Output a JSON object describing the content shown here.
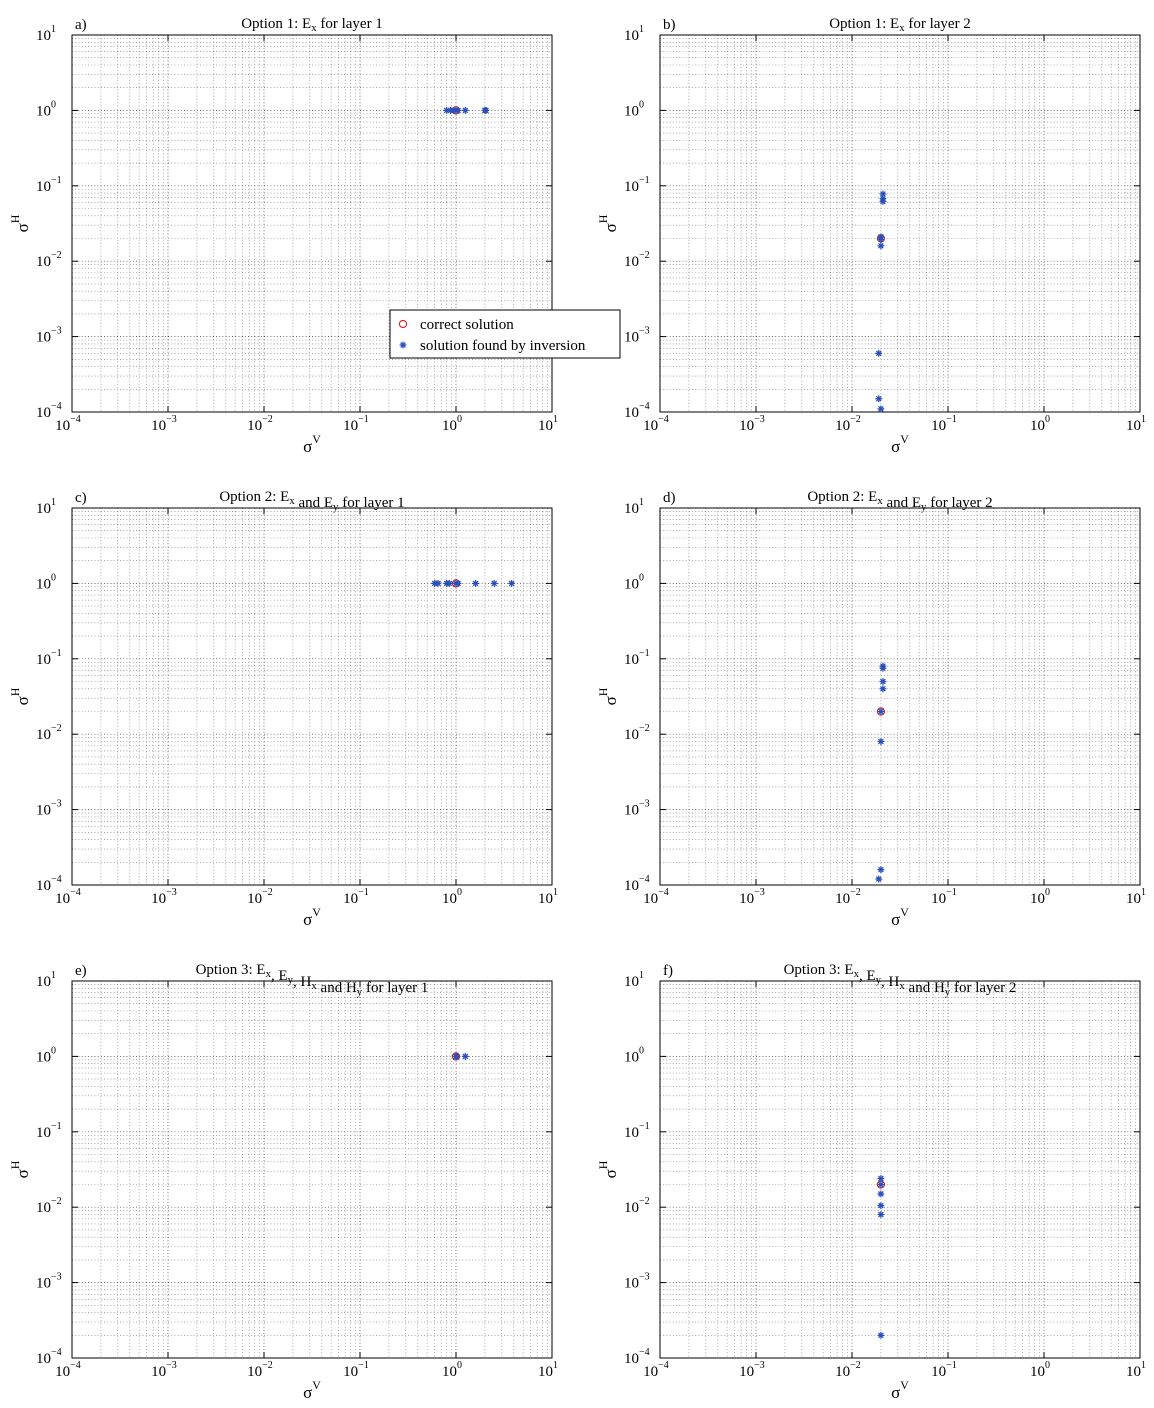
{
  "chart_data": [
    {
      "type": "scatter",
      "panel_label": "a)",
      "title": "Option 1: E_x for layer 1",
      "xlabel": "σV",
      "ylabel": "σH",
      "xscale": "log",
      "yscale": "log",
      "xlim": [
        0.0001,
        10
      ],
      "ylim": [
        0.0001,
        10
      ],
      "grid": true,
      "legend": {
        "placement": "lower-right",
        "entries": [
          "correct solution",
          "solution found by inversion"
        ]
      },
      "series": [
        {
          "name": "correct solution",
          "marker": "circle",
          "color": "#d62020",
          "points": [
            [
              1,
              1
            ]
          ]
        },
        {
          "name": "solution found by inversion",
          "marker": "asterisk",
          "color": "#2b4fb8",
          "points": [
            [
              0.8,
              1
            ],
            [
              0.88,
              1
            ],
            [
              0.95,
              1
            ],
            [
              1.0,
              1
            ],
            [
              1.05,
              1
            ],
            [
              1.25,
              1
            ],
            [
              2.0,
              1
            ],
            [
              2.05,
              1
            ]
          ]
        }
      ]
    },
    {
      "type": "scatter",
      "panel_label": "b)",
      "title": "Option 1: E_x for layer 2",
      "xlabel": "σV",
      "ylabel": "σH",
      "xscale": "log",
      "yscale": "log",
      "xlim": [
        0.0001,
        10
      ],
      "ylim": [
        0.0001,
        10
      ],
      "grid": true,
      "series": [
        {
          "name": "correct solution",
          "marker": "circle",
          "color": "#d62020",
          "points": [
            [
              0.02,
              0.02
            ]
          ]
        },
        {
          "name": "solution found by inversion",
          "marker": "asterisk",
          "color": "#2b4fb8",
          "points": [
            [
              0.021,
              0.078
            ],
            [
              0.021,
              0.068
            ],
            [
              0.021,
              0.062
            ],
            [
              0.02,
              0.021
            ],
            [
              0.02,
              0.0195
            ],
            [
              0.02,
              0.016
            ],
            [
              0.019,
              0.0006
            ],
            [
              0.019,
              0.00015
            ],
            [
              0.02,
              0.00011
            ]
          ]
        }
      ]
    },
    {
      "type": "scatter",
      "panel_label": "c)",
      "title": "Option 2: E_x and E_y for layer 1",
      "xlabel": "σV",
      "ylabel": "σH",
      "xscale": "log",
      "yscale": "log",
      "xlim": [
        0.0001,
        10
      ],
      "ylim": [
        0.0001,
        10
      ],
      "grid": true,
      "series": [
        {
          "name": "correct solution",
          "marker": "circle",
          "color": "#d62020",
          "points": [
            [
              1,
              1
            ]
          ]
        },
        {
          "name": "solution found by inversion",
          "marker": "asterisk",
          "color": "#2b4fb8",
          "points": [
            [
              0.6,
              1
            ],
            [
              0.65,
              1
            ],
            [
              0.8,
              1
            ],
            [
              0.85,
              1
            ],
            [
              1.0,
              1
            ],
            [
              1.05,
              1
            ],
            [
              1.6,
              1
            ],
            [
              2.5,
              1
            ],
            [
              3.8,
              1
            ]
          ]
        }
      ]
    },
    {
      "type": "scatter",
      "panel_label": "d)",
      "title": "Option 2: E_x and E_y for layer 2",
      "xlabel": "σV",
      "ylabel": "σH",
      "xscale": "log",
      "yscale": "log",
      "xlim": [
        0.0001,
        10
      ],
      "ylim": [
        0.0001,
        10
      ],
      "grid": true,
      "series": [
        {
          "name": "correct solution",
          "marker": "circle",
          "color": "#d62020",
          "points": [
            [
              0.02,
              0.02
            ]
          ]
        },
        {
          "name": "solution found by inversion",
          "marker": "asterisk",
          "color": "#2b4fb8",
          "points": [
            [
              0.021,
              0.08
            ],
            [
              0.021,
              0.075
            ],
            [
              0.021,
              0.05
            ],
            [
              0.021,
              0.04
            ],
            [
              0.02,
              0.02
            ],
            [
              0.02,
              0.008
            ],
            [
              0.02,
              0.00016
            ],
            [
              0.019,
              0.00012
            ]
          ]
        }
      ]
    },
    {
      "type": "scatter",
      "panel_label": "e)",
      "title": "Option 3: E_x, E_y, H_x and H_y for layer 1",
      "xlabel": "σV",
      "ylabel": "σH",
      "xscale": "log",
      "yscale": "log",
      "xlim": [
        0.0001,
        10
      ],
      "ylim": [
        0.0001,
        10
      ],
      "grid": true,
      "series": [
        {
          "name": "correct solution",
          "marker": "circle",
          "color": "#d62020",
          "points": [
            [
              1,
              1
            ]
          ]
        },
        {
          "name": "solution found by inversion",
          "marker": "asterisk",
          "color": "#2b4fb8",
          "points": [
            [
              1.0,
              1
            ],
            [
              1.02,
              1
            ],
            [
              1.25,
              1
            ]
          ]
        }
      ]
    },
    {
      "type": "scatter",
      "panel_label": "f)",
      "title": "Option 3: E_x, E_y, H_x and H_y for layer 2",
      "xlabel": "σV",
      "ylabel": "σH",
      "xscale": "log",
      "yscale": "log",
      "xlim": [
        0.0001,
        10
      ],
      "ylim": [
        0.0001,
        10
      ],
      "grid": true,
      "series": [
        {
          "name": "correct solution",
          "marker": "circle",
          "color": "#d62020",
          "points": [
            [
              0.02,
              0.02
            ]
          ]
        },
        {
          "name": "solution found by inversion",
          "marker": "asterisk",
          "color": "#2b4fb8",
          "points": [
            [
              0.02,
              0.024
            ],
            [
              0.02,
              0.02
            ],
            [
              0.02,
              0.015
            ],
            [
              0.02,
              0.0105
            ],
            [
              0.02,
              0.008
            ],
            [
              0.02,
              0.0002
            ]
          ]
        }
      ]
    }
  ]
}
